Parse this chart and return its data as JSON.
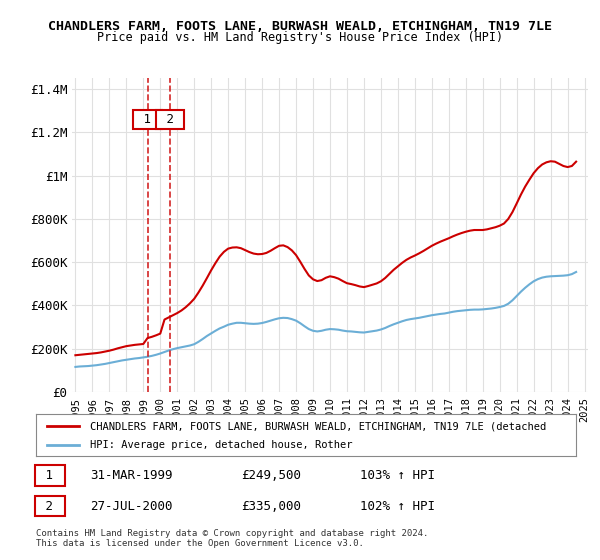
{
  "title": "CHANDLERS FARM, FOOTS LANE, BURWASH WEALD, ETCHINGHAM, TN19 7LE",
  "subtitle": "Price paid vs. HM Land Registry's House Price Index (HPI)",
  "legend_line1": "CHANDLERS FARM, FOOTS LANE, BURWASH WEALD, ETCHINGHAM, TN19 7LE (detached",
  "legend_line2": "HPI: Average price, detached house, Rother",
  "footnote1": "Contains HM Land Registry data © Crown copyright and database right 2024.",
  "footnote2": "This data is licensed under the Open Government Licence v3.0.",
  "transactions": [
    {
      "num": 1,
      "date": "31-MAR-1999",
      "price": 249500,
      "pct": "103%",
      "dir": "↑",
      "year": 1999.25
    },
    {
      "num": 2,
      "date": "27-JUL-2000",
      "price": 335000,
      "pct": "102%",
      "dir": "↑",
      "year": 2000.58
    }
  ],
  "hpi_color": "#6baed6",
  "property_color": "#cc0000",
  "background_color": "#ffffff",
  "grid_color": "#e0e0e0",
  "ylim": [
    0,
    1450000
  ],
  "yticks": [
    0,
    200000,
    400000,
    600000,
    800000,
    1000000,
    1200000,
    1400000
  ],
  "ytick_labels": [
    "£0",
    "£200K",
    "£400K",
    "£600K",
    "£800K",
    "£1M",
    "£1.2M",
    "£1.4M"
  ],
  "hpi_x": [
    1995.0,
    1995.25,
    1995.5,
    1995.75,
    1996.0,
    1996.25,
    1996.5,
    1996.75,
    1997.0,
    1997.25,
    1997.5,
    1997.75,
    1998.0,
    1998.25,
    1998.5,
    1998.75,
    1999.0,
    1999.25,
    1999.5,
    1999.75,
    2000.0,
    2000.25,
    2000.5,
    2000.75,
    2001.0,
    2001.25,
    2001.5,
    2001.75,
    2002.0,
    2002.25,
    2002.5,
    2002.75,
    2003.0,
    2003.25,
    2003.5,
    2003.75,
    2004.0,
    2004.25,
    2004.5,
    2004.75,
    2005.0,
    2005.25,
    2005.5,
    2005.75,
    2006.0,
    2006.25,
    2006.5,
    2006.75,
    2007.0,
    2007.25,
    2007.5,
    2007.75,
    2008.0,
    2008.25,
    2008.5,
    2008.75,
    2009.0,
    2009.25,
    2009.5,
    2009.75,
    2010.0,
    2010.25,
    2010.5,
    2010.75,
    2011.0,
    2011.25,
    2011.5,
    2011.75,
    2012.0,
    2012.25,
    2012.5,
    2012.75,
    2013.0,
    2013.25,
    2013.5,
    2013.75,
    2014.0,
    2014.25,
    2014.5,
    2014.75,
    2015.0,
    2015.25,
    2015.5,
    2015.75,
    2016.0,
    2016.25,
    2016.5,
    2016.75,
    2017.0,
    2017.25,
    2017.5,
    2017.75,
    2018.0,
    2018.25,
    2018.5,
    2018.75,
    2019.0,
    2019.25,
    2019.5,
    2019.75,
    2020.0,
    2020.25,
    2020.5,
    2020.75,
    2021.0,
    2021.25,
    2021.5,
    2021.75,
    2022.0,
    2022.25,
    2022.5,
    2022.75,
    2023.0,
    2023.25,
    2023.5,
    2023.75,
    2024.0,
    2024.25,
    2024.5
  ],
  "hpi_y": [
    116000,
    118000,
    119000,
    120000,
    122000,
    124000,
    127000,
    130000,
    134000,
    138000,
    142000,
    146000,
    149000,
    152000,
    155000,
    157000,
    160000,
    163000,
    167000,
    172000,
    178000,
    185000,
    192000,
    198000,
    203000,
    207000,
    211000,
    215000,
    221000,
    232000,
    245000,
    259000,
    271000,
    283000,
    294000,
    302000,
    311000,
    316000,
    320000,
    320000,
    318000,
    316000,
    315000,
    316000,
    319000,
    324000,
    330000,
    336000,
    341000,
    343000,
    342000,
    337000,
    330000,
    318000,
    304000,
    291000,
    283000,
    280000,
    283000,
    288000,
    291000,
    290000,
    288000,
    284000,
    281000,
    280000,
    278000,
    276000,
    275000,
    278000,
    281000,
    284000,
    289000,
    296000,
    305000,
    313000,
    320000,
    327000,
    333000,
    337000,
    340000,
    343000,
    347000,
    351000,
    355000,
    358000,
    361000,
    363000,
    367000,
    371000,
    374000,
    376000,
    378000,
    380000,
    381000,
    381000,
    382000,
    384000,
    386000,
    389000,
    393000,
    398000,
    408000,
    424000,
    444000,
    464000,
    482000,
    498000,
    512000,
    522000,
    529000,
    533000,
    535000,
    536000,
    537000,
    538000,
    540000,
    545000,
    555000
  ],
  "prop_x": [
    1995.0,
    1995.25,
    1995.5,
    1995.75,
    1996.0,
    1996.25,
    1996.5,
    1996.75,
    1997.0,
    1997.25,
    1997.5,
    1997.75,
    1998.0,
    1998.25,
    1998.5,
    1998.75,
    1999.0,
    1999.25,
    1999.5,
    1999.75,
    2000.0,
    2000.25,
    2000.5,
    2000.75,
    2001.0,
    2001.25,
    2001.5,
    2001.75,
    2002.0,
    2002.25,
    2002.5,
    2002.75,
    2003.0,
    2003.25,
    2003.5,
    2003.75,
    2004.0,
    2004.25,
    2004.5,
    2004.75,
    2005.0,
    2005.25,
    2005.5,
    2005.75,
    2006.0,
    2006.25,
    2006.5,
    2006.75,
    2007.0,
    2007.25,
    2007.5,
    2007.75,
    2008.0,
    2008.25,
    2008.5,
    2008.75,
    2009.0,
    2009.25,
    2009.5,
    2009.75,
    2010.0,
    2010.25,
    2010.5,
    2010.75,
    2011.0,
    2011.25,
    2011.5,
    2011.75,
    2012.0,
    2012.25,
    2012.5,
    2012.75,
    2013.0,
    2013.25,
    2013.5,
    2013.75,
    2014.0,
    2014.25,
    2014.5,
    2014.75,
    2015.0,
    2015.25,
    2015.5,
    2015.75,
    2016.0,
    2016.25,
    2016.5,
    2016.75,
    2017.0,
    2017.25,
    2017.5,
    2017.75,
    2018.0,
    2018.25,
    2018.5,
    2018.75,
    2019.0,
    2019.25,
    2019.5,
    2019.75,
    2020.0,
    2020.25,
    2020.5,
    2020.75,
    2021.0,
    2021.25,
    2021.5,
    2021.75,
    2022.0,
    2022.25,
    2022.5,
    2022.75,
    2023.0,
    2023.25,
    2023.5,
    2023.75,
    2024.0,
    2024.25,
    2024.5
  ],
  "prop_y": [
    170000,
    172000,
    174000,
    176000,
    178000,
    180000,
    183000,
    187000,
    191000,
    196000,
    202000,
    207000,
    212000,
    215000,
    218000,
    220000,
    222000,
    249500,
    255000,
    262000,
    270000,
    335000,
    345000,
    355000,
    365000,
    377000,
    392000,
    410000,
    431000,
    460000,
    492000,
    527000,
    563000,
    596000,
    626000,
    648000,
    663000,
    668000,
    669000,
    665000,
    656000,
    647000,
    640000,
    637000,
    638000,
    643000,
    653000,
    665000,
    676000,
    678000,
    670000,
    655000,
    633000,
    602000,
    569000,
    539000,
    521000,
    513000,
    517000,
    528000,
    535000,
    531000,
    524000,
    513000,
    503000,
    499000,
    494000,
    488000,
    485000,
    490000,
    496000,
    502000,
    512000,
    527000,
    546000,
    565000,
    581000,
    597000,
    611000,
    622000,
    631000,
    641000,
    652000,
    664000,
    676000,
    686000,
    695000,
    703000,
    711000,
    720000,
    728000,
    735000,
    741000,
    746000,
    749000,
    749000,
    749000,
    752000,
    757000,
    762000,
    769000,
    779000,
    800000,
    832000,
    872000,
    913000,
    950000,
    982000,
    1012000,
    1035000,
    1052000,
    1062000,
    1067000,
    1065000,
    1055000,
    1045000,
    1040000,
    1045000,
    1065000
  ]
}
